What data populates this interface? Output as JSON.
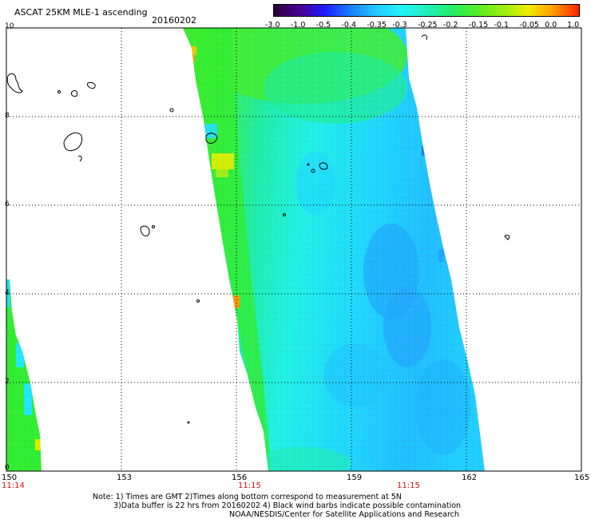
{
  "header": {
    "title": "ASCAT 25KM MLE-1 ascending",
    "date": "20160202"
  },
  "colorbar": {
    "labels": [
      "-3.0",
      "-1.0",
      "-0.5",
      "-0.4",
      "-0.35",
      "-0.3",
      "-0.25",
      "-0.2",
      "-0.15",
      "-0.1",
      "-0.05",
      "0.0",
      "1.0"
    ],
    "colors": [
      "#2a003a",
      "#4b0090",
      "#1c1cff",
      "#1a7dff",
      "#22c8ff",
      "#23f5f5",
      "#22f0c0",
      "#22ee66",
      "#55ee22",
      "#99ee11",
      "#eeee00",
      "#ff9900",
      "#ff2200"
    ]
  },
  "map": {
    "lon_labels": [
      "150",
      "153",
      "156",
      "159",
      "162",
      "165"
    ],
    "lat_labels": [
      "0",
      "2",
      "4",
      "6",
      "8",
      "10"
    ],
    "time_labels": [
      "11:14",
      "11:15",
      "11:15"
    ],
    "lon_range": [
      150,
      165
    ],
    "lat_range": [
      0,
      10
    ]
  },
  "notes": {
    "line1": "Note: 1) Times are GMT 2)Times along bottom correspond to measurement at 5N",
    "line2": "3)Data buffer is 22 hrs from 20160202 4) Black wind barbs indicate possible contamination",
    "line3": "NOAA/NESDIS/Center for Satellite Applications and Research"
  }
}
